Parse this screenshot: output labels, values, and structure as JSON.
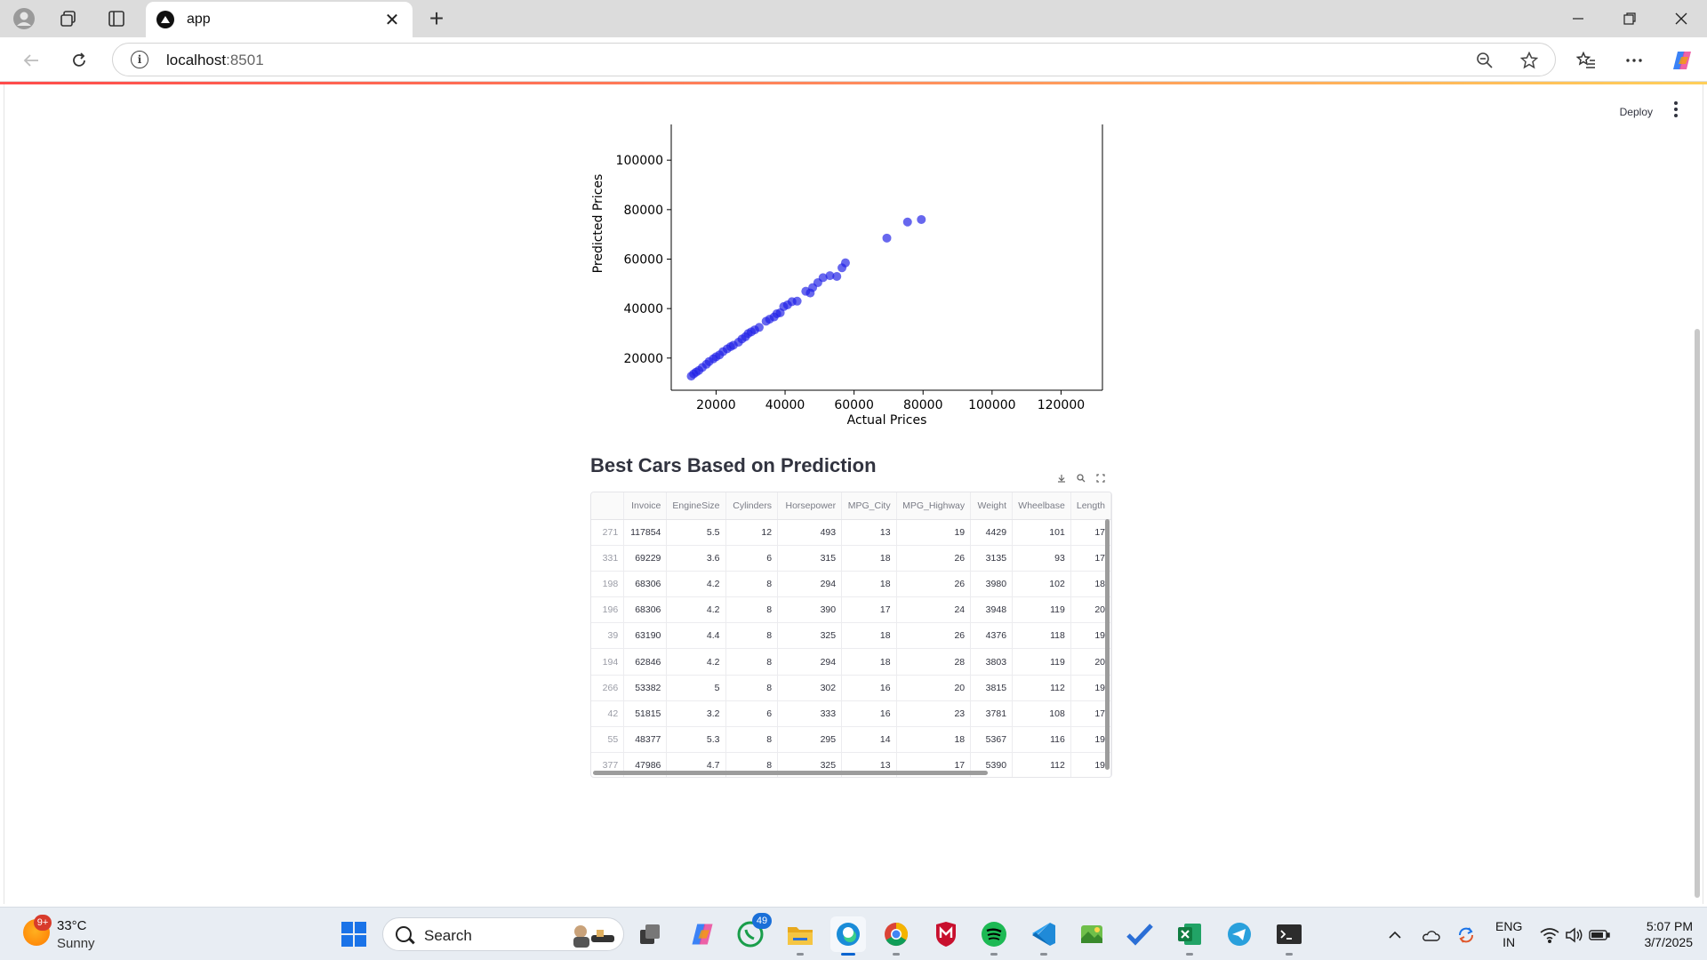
{
  "browser": {
    "tab_title": "app",
    "url_host": "localhost",
    "url_port": ":8501"
  },
  "app": {
    "deploy_label": "Deploy"
  },
  "chart_data": {
    "type": "scatter",
    "title": "",
    "xlabel": "Actual Prices",
    "ylabel": "Predicted Prices",
    "xlim": [
      7000,
      132000
    ],
    "ylim": [
      7000,
      113000
    ],
    "xticks": [
      20000,
      40000,
      60000,
      80000,
      100000,
      120000
    ],
    "yticks": [
      20000,
      40000,
      60000,
      80000,
      100000
    ],
    "color": "#1f1fe6",
    "points": [
      [
        12800,
        12700
      ],
      [
        13500,
        13600
      ],
      [
        14200,
        14300
      ],
      [
        15000,
        15000
      ],
      [
        16000,
        16200
      ],
      [
        17200,
        17500
      ],
      [
        18000,
        18600
      ],
      [
        19200,
        19700
      ],
      [
        20000,
        20500
      ],
      [
        21000,
        21300
      ],
      [
        22000,
        22600
      ],
      [
        23200,
        23700
      ],
      [
        24200,
        24600
      ],
      [
        25000,
        25200
      ],
      [
        26500,
        26400
      ],
      [
        27500,
        27700
      ],
      [
        28500,
        28600
      ],
      [
        29300,
        29900
      ],
      [
        30200,
        30600
      ],
      [
        31200,
        31400
      ],
      [
        32500,
        32400
      ],
      [
        34500,
        34900
      ],
      [
        35500,
        35700
      ],
      [
        36800,
        36600
      ],
      [
        37600,
        37900
      ],
      [
        38600,
        38300
      ],
      [
        39600,
        40800
      ],
      [
        40700,
        41500
      ],
      [
        42000,
        42800
      ],
      [
        43500,
        43000
      ],
      [
        46000,
        47000
      ],
      [
        47300,
        46300
      ],
      [
        48000,
        48500
      ],
      [
        49500,
        50500
      ],
      [
        51000,
        52500
      ],
      [
        53000,
        53300
      ],
      [
        55000,
        53000
      ],
      [
        56500,
        56500
      ],
      [
        57500,
        58500
      ],
      [
        69500,
        68500
      ],
      [
        75500,
        75000
      ],
      [
        79500,
        76000
      ]
    ]
  },
  "table": {
    "title": "Best Cars Based on Prediction",
    "columns": [
      "",
      "Invoice",
      "EngineSize",
      "Cylinders",
      "Horsepower",
      "MPG_City",
      "MPG_Highway",
      "Weight",
      "Wheelbase",
      "Length"
    ],
    "rows": [
      [
        "271",
        "117854",
        "5.5",
        "12",
        "493",
        "13",
        "19",
        "4429",
        "101",
        "17"
      ],
      [
        "331",
        "69229",
        "3.6",
        "6",
        "315",
        "18",
        "26",
        "3135",
        "93",
        "17"
      ],
      [
        "198",
        "68306",
        "4.2",
        "8",
        "294",
        "18",
        "26",
        "3980",
        "102",
        "18"
      ],
      [
        "196",
        "68306",
        "4.2",
        "8",
        "390",
        "17",
        "24",
        "3948",
        "119",
        "20"
      ],
      [
        "39",
        "63190",
        "4.4",
        "8",
        "325",
        "18",
        "26",
        "4376",
        "118",
        "19"
      ],
      [
        "194",
        "62846",
        "4.2",
        "8",
        "294",
        "18",
        "28",
        "3803",
        "119",
        "20"
      ],
      [
        "266",
        "53382",
        "5",
        "8",
        "302",
        "16",
        "20",
        "3815",
        "112",
        "19"
      ],
      [
        "42",
        "51815",
        "3.2",
        "6",
        "333",
        "16",
        "23",
        "3781",
        "108",
        "17"
      ],
      [
        "55",
        "48377",
        "5.3",
        "8",
        "295",
        "14",
        "18",
        "5367",
        "116",
        "19"
      ],
      [
        "377",
        "47986",
        "4.7",
        "8",
        "325",
        "13",
        "17",
        "5390",
        "112",
        "19"
      ]
    ]
  },
  "taskbar": {
    "weather_temp": "33°C",
    "weather_desc": "Sunny",
    "weather_badge": "9+",
    "search_label": "Search",
    "whatsapp_badge": "49",
    "lang_top": "ENG",
    "lang_bottom": "IN",
    "time": "5:07 PM",
    "date": "3/7/2025"
  }
}
